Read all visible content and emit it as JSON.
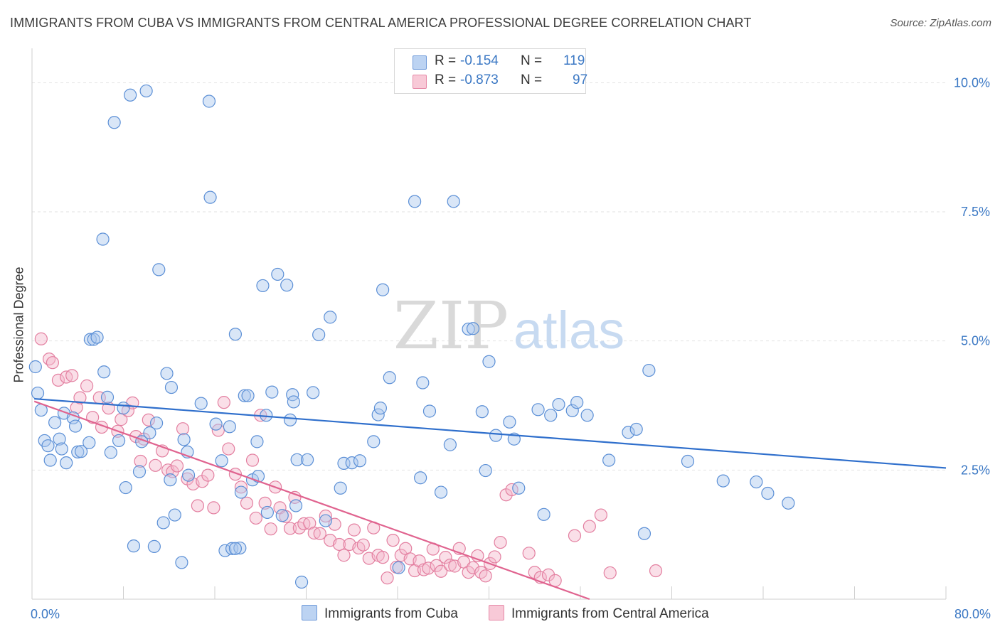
{
  "title": "IMMIGRANTS FROM CUBA VS IMMIGRANTS FROM CENTRAL AMERICA PROFESSIONAL DEGREE CORRELATION CHART",
  "source": "Source: ZipAtlas.com",
  "watermark": {
    "zip": "ZIP",
    "atlas": "atlas"
  },
  "colors": {
    "cuba_fill": "#aac8ee",
    "cuba_stroke": "#5b8fd6",
    "cuba_line": "#2f6fcc",
    "central_fill": "#f5b8cb",
    "central_stroke": "#e37fa0",
    "central_line": "#e0638f",
    "grid": "#e2e2e2",
    "tick_text": "#3b78c4"
  },
  "legend": {
    "series1": {
      "r_label": "R =",
      "r_value": "-0.154",
      "n_label": "N =",
      "n_value": "119"
    },
    "series2": {
      "r_label": "R =",
      "r_value": "-0.873",
      "n_label": "N =",
      "n_value": "97"
    }
  },
  "bottom_legend": {
    "series1": "Immigrants from Cuba",
    "series2": "Immigrants from Central America"
  },
  "chart_data": {
    "type": "scatter",
    "ylabel": "Professional Degree",
    "xlabel": "",
    "xlim": [
      0,
      80
    ],
    "ylim": [
      0,
      10.5
    ],
    "x_tick_labels": [
      {
        "value": 0,
        "label": "0.0%"
      },
      {
        "value": 80,
        "label": "80.0%"
      }
    ],
    "y_tick_labels": [
      {
        "value": 2.5,
        "label": "2.5%"
      },
      {
        "value": 5.0,
        "label": "5.0%"
      },
      {
        "value": 7.5,
        "label": "7.5%"
      },
      {
        "value": 10.0,
        "label": "10.0%"
      }
    ],
    "grid": true,
    "legend_position": "top-center",
    "series": [
      {
        "name": "Immigrants from Cuba",
        "trend": {
          "x1": 0.2,
          "y1": 3.88,
          "x2": 80,
          "y2": 2.54
        },
        "points": [
          [
            0.3,
            4.5
          ],
          [
            0.5,
            3.99
          ],
          [
            0.8,
            3.66
          ],
          [
            1.1,
            3.07
          ],
          [
            1.4,
            2.97
          ],
          [
            1.6,
            2.69
          ],
          [
            2.0,
            3.42
          ],
          [
            2.4,
            3.1
          ],
          [
            2.6,
            2.91
          ],
          [
            2.8,
            3.6
          ],
          [
            3.0,
            2.64
          ],
          [
            3.6,
            3.51
          ],
          [
            3.8,
            3.35
          ],
          [
            4.0,
            2.85
          ],
          [
            4.3,
            2.86
          ],
          [
            5.0,
            3.03
          ],
          [
            5.1,
            5.03
          ],
          [
            5.4,
            5.03
          ],
          [
            5.7,
            5.07
          ],
          [
            6.2,
            6.97
          ],
          [
            6.3,
            4.4
          ],
          [
            6.6,
            3.91
          ],
          [
            6.9,
            2.84
          ],
          [
            7.2,
            9.23
          ],
          [
            7.6,
            3.07
          ],
          [
            8.0,
            3.7
          ],
          [
            8.2,
            2.16
          ],
          [
            8.6,
            9.76
          ],
          [
            8.9,
            1.03
          ],
          [
            9.4,
            2.47
          ],
          [
            9.6,
            3.05
          ],
          [
            10.0,
            9.84
          ],
          [
            10.3,
            3.22
          ],
          [
            10.7,
            1.02
          ],
          [
            10.9,
            3.41
          ],
          [
            11.1,
            6.38
          ],
          [
            11.5,
            1.48
          ],
          [
            11.8,
            4.37
          ],
          [
            12.1,
            2.31
          ],
          [
            12.2,
            4.1
          ],
          [
            12.5,
            1.63
          ],
          [
            13.1,
            0.71
          ],
          [
            13.3,
            3.09
          ],
          [
            13.6,
            2.85
          ],
          [
            13.7,
            2.4
          ],
          [
            14.8,
            3.79
          ],
          [
            15.5,
            9.64
          ],
          [
            15.6,
            7.78
          ],
          [
            16.1,
            3.39
          ],
          [
            16.6,
            2.68
          ],
          [
            16.9,
            0.94
          ],
          [
            17.3,
            3.34
          ],
          [
            17.5,
            0.98
          ],
          [
            17.8,
            5.13
          ],
          [
            18.2,
            0.99
          ],
          [
            18.3,
            2.07
          ],
          [
            18.6,
            3.94
          ],
          [
            18.9,
            3.94
          ],
          [
            19.3,
            2.31
          ],
          [
            19.7,
            3.05
          ],
          [
            19.8,
            2.38
          ],
          [
            20.2,
            6.07
          ],
          [
            20.5,
            3.56
          ],
          [
            20.6,
            1.68
          ],
          [
            21.0,
            4.01
          ],
          [
            21.5,
            6.29
          ],
          [
            21.9,
            1.62
          ],
          [
            22.3,
            6.08
          ],
          [
            22.6,
            3.47
          ],
          [
            22.8,
            3.96
          ],
          [
            22.9,
            3.82
          ],
          [
            23.1,
            1.81
          ],
          [
            23.2,
            2.7
          ],
          [
            23.6,
            0.33
          ],
          [
            24.1,
            2.7
          ],
          [
            24.6,
            4.0
          ],
          [
            25.1,
            5.12
          ],
          [
            25.7,
            1.52
          ],
          [
            26.1,
            5.46
          ],
          [
            27.0,
            2.15
          ],
          [
            27.3,
            2.63
          ],
          [
            28.0,
            2.64
          ],
          [
            28.7,
            2.68
          ],
          [
            29.9,
            3.05
          ],
          [
            30.3,
            3.57
          ],
          [
            30.5,
            3.7
          ],
          [
            30.7,
            5.99
          ],
          [
            31.3,
            4.29
          ],
          [
            32.1,
            0.61
          ],
          [
            34.0,
            2.35
          ],
          [
            34.2,
            4.19
          ],
          [
            34.8,
            3.64
          ],
          [
            35.8,
            2.07
          ],
          [
            36.6,
            2.99
          ],
          [
            38.2,
            5.23
          ],
          [
            38.6,
            5.24
          ],
          [
            39.4,
            3.63
          ],
          [
            39.7,
            2.49
          ],
          [
            40.0,
            4.6
          ],
          [
            40.6,
            3.17
          ],
          [
            41.8,
            3.43
          ],
          [
            42.2,
            3.1
          ],
          [
            42.6,
            2.15
          ],
          [
            44.3,
            3.67
          ],
          [
            44.8,
            1.64
          ],
          [
            45.4,
            3.56
          ],
          [
            46.1,
            3.77
          ],
          [
            47.3,
            3.65
          ],
          [
            47.7,
            3.81
          ],
          [
            48.6,
            3.56
          ],
          [
            50.5,
            2.69
          ],
          [
            52.2,
            3.23
          ],
          [
            52.9,
            3.29
          ],
          [
            53.6,
            1.27
          ],
          [
            54.0,
            4.43
          ],
          [
            57.4,
            2.67
          ],
          [
            60.5,
            2.29
          ],
          [
            63.4,
            2.27
          ],
          [
            64.4,
            2.05
          ],
          [
            66.2,
            1.86
          ],
          [
            36.9,
            7.7
          ],
          [
            33.5,
            7.7
          ],
          [
            17.8,
            0.98
          ]
        ]
      },
      {
        "name": "Immigrants from Central America",
        "trend": {
          "x1": 0.2,
          "y1": 3.83,
          "x2": 48.8,
          "y2": 0.0
        },
        "points": [
          [
            0.8,
            5.04
          ],
          [
            1.5,
            4.65
          ],
          [
            1.8,
            4.58
          ],
          [
            2.3,
            4.24
          ],
          [
            3.0,
            4.3
          ],
          [
            3.5,
            4.33
          ],
          [
            3.9,
            3.71
          ],
          [
            4.2,
            3.9
          ],
          [
            4.8,
            4.13
          ],
          [
            5.3,
            3.52
          ],
          [
            5.9,
            3.9
          ],
          [
            6.1,
            3.33
          ],
          [
            6.7,
            3.7
          ],
          [
            7.5,
            3.25
          ],
          [
            7.8,
            3.48
          ],
          [
            8.4,
            3.65
          ],
          [
            8.8,
            3.8
          ],
          [
            9.1,
            3.15
          ],
          [
            9.5,
            2.67
          ],
          [
            9.8,
            3.1
          ],
          [
            10.2,
            3.47
          ],
          [
            10.8,
            2.59
          ],
          [
            11.4,
            2.87
          ],
          [
            11.9,
            2.5
          ],
          [
            12.3,
            2.47
          ],
          [
            12.7,
            2.58
          ],
          [
            13.2,
            3.3
          ],
          [
            13.6,
            2.33
          ],
          [
            14.1,
            2.23
          ],
          [
            14.5,
            1.81
          ],
          [
            14.9,
            2.28
          ],
          [
            15.4,
            2.4
          ],
          [
            15.9,
            1.77
          ],
          [
            16.3,
            3.27
          ],
          [
            16.8,
            3.81
          ],
          [
            17.2,
            2.91
          ],
          [
            17.8,
            2.42
          ],
          [
            18.3,
            2.17
          ],
          [
            18.8,
            1.86
          ],
          [
            19.3,
            2.69
          ],
          [
            19.6,
            1.57
          ],
          [
            20.0,
            3.56
          ],
          [
            20.4,
            1.86
          ],
          [
            20.9,
            1.36
          ],
          [
            21.3,
            2.17
          ],
          [
            21.7,
            1.77
          ],
          [
            22.2,
            1.6
          ],
          [
            22.6,
            1.37
          ],
          [
            23.0,
            1.97
          ],
          [
            23.4,
            1.38
          ],
          [
            23.8,
            1.46
          ],
          [
            24.3,
            1.47
          ],
          [
            24.7,
            1.28
          ],
          [
            25.2,
            1.27
          ],
          [
            25.7,
            1.61
          ],
          [
            26.1,
            1.14
          ],
          [
            26.5,
            1.45
          ],
          [
            26.9,
            1.06
          ],
          [
            27.3,
            0.85
          ],
          [
            27.8,
            1.06
          ],
          [
            28.2,
            1.34
          ],
          [
            28.6,
            0.99
          ],
          [
            29.0,
            1.05
          ],
          [
            29.5,
            0.79
          ],
          [
            29.9,
            1.38
          ],
          [
            30.3,
            0.85
          ],
          [
            30.7,
            0.81
          ],
          [
            31.1,
            0.41
          ],
          [
            31.6,
            1.14
          ],
          [
            31.9,
            0.62
          ],
          [
            32.3,
            0.85
          ],
          [
            32.7,
            0.98
          ],
          [
            33.1,
            0.78
          ],
          [
            33.5,
            0.55
          ],
          [
            33.9,
            0.74
          ],
          [
            34.3,
            0.57
          ],
          [
            34.7,
            0.6
          ],
          [
            35.1,
            0.97
          ],
          [
            35.4,
            0.65
          ],
          [
            35.8,
            0.54
          ],
          [
            36.2,
            0.81
          ],
          [
            36.6,
            0.66
          ],
          [
            37.0,
            0.64
          ],
          [
            37.4,
            0.98
          ],
          [
            37.8,
            0.72
          ],
          [
            38.2,
            0.52
          ],
          [
            38.6,
            0.61
          ],
          [
            39.0,
            0.84
          ],
          [
            39.3,
            0.52
          ],
          [
            39.7,
            0.45
          ],
          [
            40.1,
            0.69
          ],
          [
            40.5,
            0.82
          ],
          [
            41.0,
            1.1
          ],
          [
            41.5,
            2.02
          ],
          [
            42.0,
            2.12
          ],
          [
            43.5,
            0.89
          ],
          [
            44.0,
            0.52
          ],
          [
            44.5,
            0.42
          ],
          [
            45.2,
            0.47
          ],
          [
            45.8,
            0.36
          ],
          [
            47.5,
            1.23
          ],
          [
            48.8,
            1.41
          ],
          [
            49.8,
            1.63
          ],
          [
            50.6,
            0.51
          ],
          [
            54.6,
            0.55
          ]
        ]
      }
    ]
  }
}
